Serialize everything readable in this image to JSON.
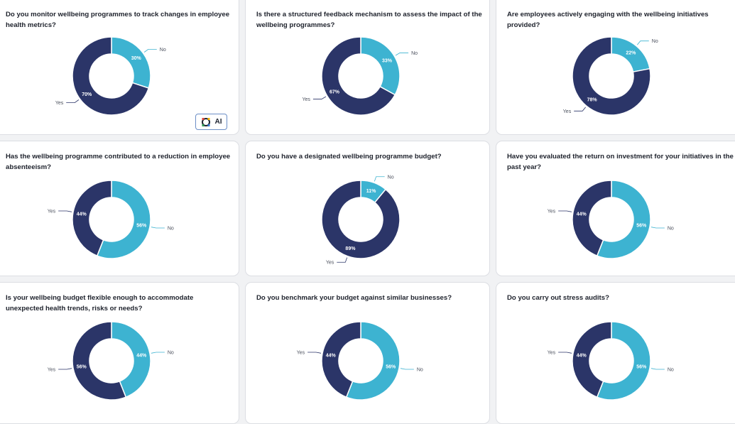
{
  "colors": {
    "yes": "#2b3568",
    "no": "#3db3d1"
  },
  "ai_button": {
    "label": "AI",
    "icon": "ai-sparkle-icon"
  },
  "charts": [
    {
      "title": "Do you monitor wellbeing programmes to track changes in employee health metrics?",
      "chart_data": {
        "type": "pie",
        "categories": [
          "No",
          "Yes"
        ],
        "values": [
          30,
          70
        ],
        "unit": "%",
        "hole": "donut"
      }
    },
    {
      "title": "Is there a structured feedback mechanism to assess the impact of the wellbeing programmes?",
      "chart_data": {
        "type": "pie",
        "categories": [
          "No",
          "Yes"
        ],
        "values": [
          33,
          67
        ],
        "unit": "%",
        "hole": "donut"
      }
    },
    {
      "title": "Are employees actively engaging with the wellbeing initiatives provided?",
      "chart_data": {
        "type": "pie",
        "categories": [
          "No",
          "Yes"
        ],
        "values": [
          22,
          78
        ],
        "unit": "%",
        "hole": "donut"
      }
    },
    {
      "title": "Has the wellbeing programme contributed to a reduction in employee absenteeism?",
      "chart_data": {
        "type": "pie",
        "categories": [
          "No",
          "Yes"
        ],
        "values": [
          56,
          44
        ],
        "unit": "%",
        "hole": "donut"
      }
    },
    {
      "title": "Do you have a designated wellbeing programme budget?",
      "chart_data": {
        "type": "pie",
        "categories": [
          "No",
          "Yes"
        ],
        "values": [
          11,
          89
        ],
        "unit": "%",
        "hole": "donut"
      }
    },
    {
      "title": "Have you evaluated the return on investment for your initiatives in the past year?",
      "chart_data": {
        "type": "pie",
        "categories": [
          "No",
          "Yes"
        ],
        "values": [
          56,
          44
        ],
        "unit": "%",
        "hole": "donut"
      }
    },
    {
      "title": "Is your wellbeing budget flexible enough to accommodate unexpected health trends, risks or needs?",
      "chart_data": {
        "type": "pie",
        "categories": [
          "No",
          "Yes"
        ],
        "values": [
          44,
          56
        ],
        "unit": "%",
        "hole": "donut"
      }
    },
    {
      "title": "Do you benchmark your budget against similar businesses?",
      "chart_data": {
        "type": "pie",
        "categories": [
          "No",
          "Yes"
        ],
        "values": [
          56,
          44
        ],
        "unit": "%",
        "hole": "donut"
      }
    },
    {
      "title": "Do you carry out stress audits?",
      "chart_data": {
        "type": "pie",
        "categories": [
          "No",
          "Yes"
        ],
        "values": [
          56,
          44
        ],
        "unit": "%",
        "hole": "donut"
      }
    }
  ]
}
